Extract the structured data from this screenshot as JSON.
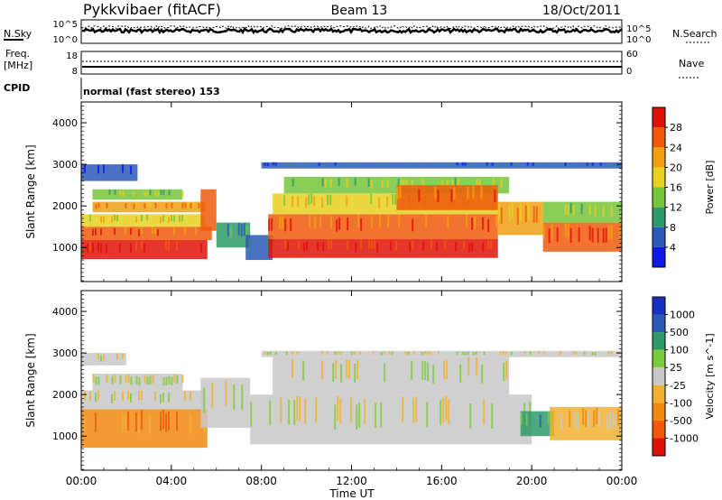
{
  "header": {
    "station": "Pykkvibaer (fitACF)",
    "beam": "Beam 13",
    "date": "18/Oct/2011"
  },
  "summary_panels": {
    "nsky_label": "N.Sky",
    "nsearch_label": "N.Search",
    "freq_label_line1": "Freq.",
    "freq_label_line2": "[MHz]",
    "nave_label": "Nave",
    "cpid_label": "CPID",
    "cpid_text": "normal (fast stereo) 153",
    "noise_ticks_left": [
      "10^5",
      "10^0"
    ],
    "noise_ticks_right": [
      "10^5",
      "10^0"
    ],
    "freq_ticks": [
      "18",
      "8"
    ],
    "nave_ticks": [
      "60",
      "0"
    ]
  },
  "chart_data": [
    {
      "type": "heatmap",
      "parameter": "Power",
      "ylabel": "Slant Range [km]",
      "colorbar_label": "Power [dB]",
      "colorbar_ticks": [
        "4",
        "8",
        "12",
        "16",
        "20",
        "24",
        "28"
      ],
      "colorbar_range": [
        0,
        32
      ],
      "colorbar_colors": [
        "#1018e8",
        "#2c58b8",
        "#2e9a6a",
        "#76c43a",
        "#e8d020",
        "#f0a010",
        "#f05a0a",
        "#e01208"
      ],
      "y_ticks": [
        "1000",
        "2000",
        "3000",
        "4000"
      ],
      "ylim": [
        180,
        4500
      ],
      "x_ticks": [
        "00:00",
        "04:00",
        "08:00",
        "12:00",
        "16:00",
        "20:00",
        "00:00"
      ],
      "xlim_hours": [
        0,
        24
      ],
      "echo_regions": [
        {
          "t0": 0.0,
          "t1": 5.6,
          "r0": 720,
          "r1": 1180,
          "level": 7
        },
        {
          "t0": 0.0,
          "t1": 5.8,
          "r0": 1180,
          "r1": 1500,
          "level": 6
        },
        {
          "t0": 0.0,
          "t1": 5.5,
          "r0": 1500,
          "r1": 1800,
          "level": 4
        },
        {
          "t0": 0.5,
          "t1": 5.5,
          "r0": 1850,
          "r1": 2100,
          "level": 5
        },
        {
          "t0": 0.5,
          "t1": 4.5,
          "r0": 2150,
          "r1": 2400,
          "level": 3
        },
        {
          "t0": 5.3,
          "t1": 6.0,
          "r0": 1400,
          "r1": 2400,
          "level": 6
        },
        {
          "t0": 6.0,
          "t1": 7.5,
          "r0": 1000,
          "r1": 1600,
          "level": 2
        },
        {
          "t0": 7.3,
          "t1": 8.5,
          "r0": 700,
          "r1": 1300,
          "level": 1
        },
        {
          "t0": 8.3,
          "t1": 18.5,
          "r0": 750,
          "r1": 1200,
          "level": 7
        },
        {
          "t0": 8.3,
          "t1": 18.5,
          "r0": 1200,
          "r1": 1800,
          "level": 6
        },
        {
          "t0": 8.5,
          "t1": 18.5,
          "r0": 1800,
          "r1": 2300,
          "level": 4
        },
        {
          "t0": 9.0,
          "t1": 19.0,
          "r0": 2300,
          "r1": 2700,
          "level": 3
        },
        {
          "t0": 14.0,
          "t1": 18.5,
          "r0": 1900,
          "r1": 2500,
          "level": 6
        },
        {
          "t0": 18.5,
          "t1": 20.5,
          "r0": 1300,
          "r1": 2100,
          "level": 5
        },
        {
          "t0": 20.5,
          "t1": 24.0,
          "r0": 900,
          "r1": 1600,
          "level": 6
        },
        {
          "t0": 20.5,
          "t1": 24.0,
          "r0": 1600,
          "r1": 2100,
          "level": 3
        },
        {
          "t0": 0.0,
          "t1": 2.5,
          "r0": 2600,
          "r1": 3000,
          "level": 1
        },
        {
          "t0": 8.0,
          "t1": 24.0,
          "r0": 2900,
          "r1": 3050,
          "level": 1
        }
      ]
    },
    {
      "type": "heatmap",
      "parameter": "Velocity",
      "ylabel": "Slant Range [km]",
      "colorbar_label": "Velocity [m s^-1]",
      "colorbar_ticks": [
        "-1000",
        "-500",
        "-100",
        "-25",
        "25",
        "100",
        "500",
        "1000"
      ],
      "colorbar_colors": [
        "#e01208",
        "#f05a0a",
        "#f08a10",
        "#f0b030",
        "#c8c8c8",
        "#7acc3a",
        "#2e9a6a",
        "#2c58b8",
        "#1830c0"
      ],
      "y_ticks": [
        "1000",
        "2000",
        "3000",
        "4000"
      ],
      "ylim": [
        180,
        4500
      ],
      "x_ticks": [
        "00:00",
        "04:00",
        "08:00",
        "12:00",
        "16:00",
        "20:00",
        "00:00"
      ],
      "xlabel": "Time UT",
      "xlim_hours": [
        0,
        24
      ],
      "echo_regions": [
        {
          "t0": 0.0,
          "t1": 5.6,
          "r0": 720,
          "r1": 1650,
          "level": 2
        },
        {
          "t0": 0.0,
          "t1": 5.5,
          "r0": 1650,
          "r1": 2100,
          "level": 4
        },
        {
          "t0": 0.5,
          "t1": 4.5,
          "r0": 2100,
          "r1": 2500,
          "level": 4
        },
        {
          "t0": 5.3,
          "t1": 7.5,
          "r0": 1200,
          "r1": 2400,
          "level": 4
        },
        {
          "t0": 7.5,
          "t1": 20.0,
          "r0": 800,
          "r1": 2000,
          "level": 4
        },
        {
          "t0": 8.5,
          "t1": 19.0,
          "r0": 2000,
          "r1": 2900,
          "level": 4
        },
        {
          "t0": 19.5,
          "t1": 21.0,
          "r0": 1000,
          "r1": 1600,
          "level": 6
        },
        {
          "t0": 20.8,
          "t1": 24.0,
          "r0": 900,
          "r1": 1700,
          "level": 3
        },
        {
          "t0": 0.0,
          "t1": 2.0,
          "r0": 2700,
          "r1": 3000,
          "level": 4
        },
        {
          "t0": 8.0,
          "t1": 24.0,
          "r0": 2900,
          "r1": 3050,
          "level": 4
        }
      ]
    }
  ]
}
